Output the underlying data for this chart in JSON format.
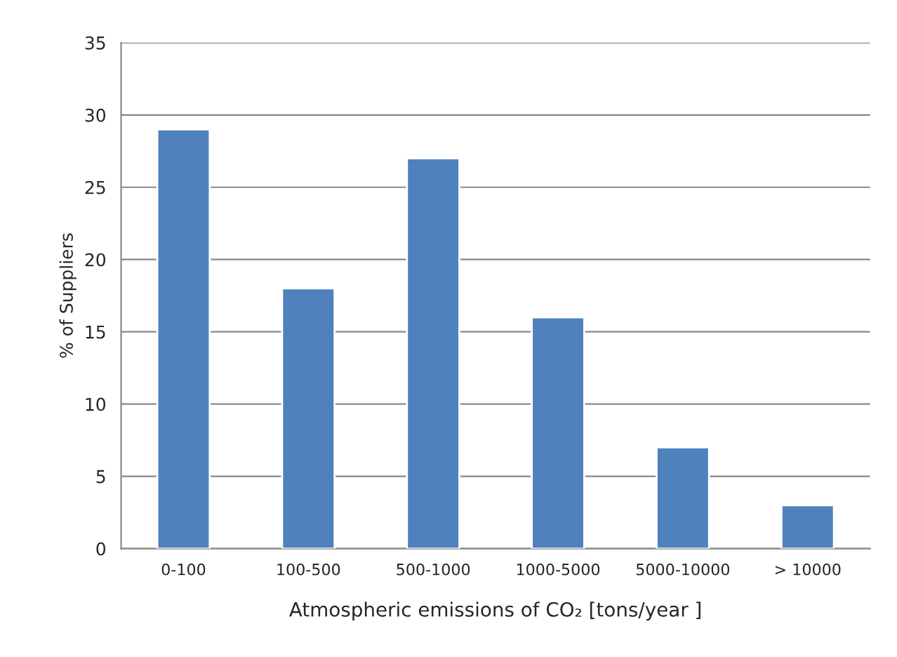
{
  "chart_data": {
    "type": "bar",
    "xlabel": "Atmospheric emissions of CO₂ [tons/year ]",
    "ylabel": "% of Suppliers",
    "categories": [
      "0-100",
      "100-500",
      "500-1000",
      "1000-5000",
      "5000-10000",
      "> 10000"
    ],
    "values": [
      29,
      18,
      27,
      16,
      7,
      3
    ],
    "color": "#4f81bd",
    "ylim": [
      0,
      35
    ],
    "yticks": [
      0,
      5,
      10,
      15,
      20,
      25,
      30,
      35
    ],
    "grid": "y",
    "legend": false
  }
}
